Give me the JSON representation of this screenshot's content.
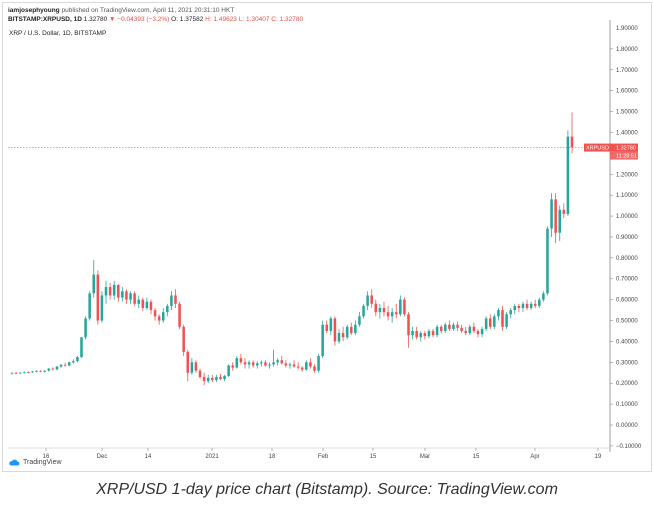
{
  "header": {
    "publisher": "iamjosephyoung",
    "published_text": "published on TradingView.com, April 11, 2021 20:31:10 HKT",
    "symbol": "BITSTAMP:XRPUSD, 1D",
    "last": "1.32780",
    "change": "▼ −0.04393 (−3.2%)",
    "open": "O: 1.37582",
    "high": "H: 1.49623",
    "low": "L: 1.30407",
    "close": "C: 1.32780"
  },
  "chart_title": "XRP / U.S. Dollar, 1D, BITSTAMP",
  "price_badge": {
    "label": "XRPUSD",
    "value": "1.32780",
    "countdown": "11:28:51"
  },
  "logo_text": "TradingView",
  "caption": "XRP/USD 1-day price chart (Bitstamp). Source: TradingView.com",
  "colors": {
    "up": "#26a69a",
    "down": "#ef5350",
    "badge": "#ef5350"
  },
  "chart_data": {
    "type": "candlestick",
    "x_ticks": [
      "16",
      "Dec",
      "14",
      "2021",
      "18",
      "Feb",
      "15",
      "Mar",
      "15",
      "Apr",
      "19"
    ],
    "y_ticks": [
      "1.80000",
      "1.70000",
      "1.60000",
      "1.50000",
      "1.40000",
      "1.30000",
      "1.20000",
      "1.10000",
      "1.00000",
      "0.90000",
      "0.80000",
      "0.70000",
      "0.60000",
      "0.50000",
      "0.40000",
      "0.30000",
      "0.20000",
      "0.10000",
      "0.00000",
      "−0.10000"
    ],
    "y_top_label": "1.90000",
    "ylim": [
      -0.11,
      1.9
    ],
    "last_price": 1.3278,
    "candles": [
      [
        0.246,
        0.252,
        0.242,
        0.25
      ],
      [
        0.25,
        0.254,
        0.245,
        0.248
      ],
      [
        0.248,
        0.252,
        0.243,
        0.251
      ],
      [
        0.251,
        0.256,
        0.247,
        0.253
      ],
      [
        0.253,
        0.257,
        0.249,
        0.252
      ],
      [
        0.252,
        0.258,
        0.249,
        0.256
      ],
      [
        0.256,
        0.262,
        0.252,
        0.259
      ],
      [
        0.259,
        0.262,
        0.253,
        0.255
      ],
      [
        0.255,
        0.262,
        0.251,
        0.26
      ],
      [
        0.26,
        0.272,
        0.256,
        0.27
      ],
      [
        0.27,
        0.276,
        0.262,
        0.266
      ],
      [
        0.266,
        0.282,
        0.262,
        0.28
      ],
      [
        0.28,
        0.292,
        0.274,
        0.288
      ],
      [
        0.288,
        0.298,
        0.28,
        0.285
      ],
      [
        0.285,
        0.303,
        0.281,
        0.3
      ],
      [
        0.3,
        0.315,
        0.294,
        0.306
      ],
      [
        0.306,
        0.33,
        0.3,
        0.325
      ],
      [
        0.325,
        0.42,
        0.32,
        0.42
      ],
      [
        0.42,
        0.52,
        0.41,
        0.51
      ],
      [
        0.51,
        0.64,
        0.5,
        0.63
      ],
      [
        0.63,
        0.79,
        0.61,
        0.72
      ],
      [
        0.72,
        0.74,
        0.48,
        0.5
      ],
      [
        0.5,
        0.64,
        0.49,
        0.62
      ],
      [
        0.62,
        0.69,
        0.58,
        0.66
      ],
      [
        0.66,
        0.68,
        0.6,
        0.62
      ],
      [
        0.62,
        0.69,
        0.6,
        0.67
      ],
      [
        0.67,
        0.675,
        0.59,
        0.61
      ],
      [
        0.61,
        0.66,
        0.59,
        0.64
      ],
      [
        0.64,
        0.65,
        0.58,
        0.6
      ],
      [
        0.6,
        0.64,
        0.58,
        0.63
      ],
      [
        0.63,
        0.64,
        0.57,
        0.58
      ],
      [
        0.58,
        0.62,
        0.56,
        0.6
      ],
      [
        0.6,
        0.61,
        0.545,
        0.56
      ],
      [
        0.56,
        0.61,
        0.55,
        0.59
      ],
      [
        0.59,
        0.6,
        0.53,
        0.55
      ],
      [
        0.55,
        0.56,
        0.5,
        0.52
      ],
      [
        0.52,
        0.53,
        0.48,
        0.5
      ],
      [
        0.5,
        0.56,
        0.49,
        0.54
      ],
      [
        0.54,
        0.58,
        0.52,
        0.57
      ],
      [
        0.57,
        0.64,
        0.55,
        0.62
      ],
      [
        0.62,
        0.65,
        0.56,
        0.58
      ],
      [
        0.58,
        0.59,
        0.46,
        0.47
      ],
      [
        0.47,
        0.48,
        0.33,
        0.35
      ],
      [
        0.35,
        0.36,
        0.21,
        0.25
      ],
      [
        0.25,
        0.32,
        0.24,
        0.3
      ],
      [
        0.3,
        0.31,
        0.25,
        0.26
      ],
      [
        0.26,
        0.27,
        0.22,
        0.23
      ],
      [
        0.23,
        0.25,
        0.19,
        0.21
      ],
      [
        0.21,
        0.24,
        0.2,
        0.225
      ],
      [
        0.225,
        0.24,
        0.205,
        0.215
      ],
      [
        0.215,
        0.24,
        0.205,
        0.23
      ],
      [
        0.23,
        0.245,
        0.215,
        0.22
      ],
      [
        0.22,
        0.24,
        0.21,
        0.235
      ],
      [
        0.235,
        0.29,
        0.23,
        0.285
      ],
      [
        0.285,
        0.3,
        0.26,
        0.275
      ],
      [
        0.275,
        0.33,
        0.27,
        0.32
      ],
      [
        0.32,
        0.34,
        0.29,
        0.3
      ],
      [
        0.3,
        0.32,
        0.27,
        0.29
      ],
      [
        0.29,
        0.31,
        0.27,
        0.3
      ],
      [
        0.3,
        0.31,
        0.275,
        0.285
      ],
      [
        0.285,
        0.305,
        0.27,
        0.295
      ],
      [
        0.295,
        0.31,
        0.28,
        0.3
      ],
      [
        0.3,
        0.31,
        0.28,
        0.285
      ],
      [
        0.285,
        0.3,
        0.27,
        0.29
      ],
      [
        0.29,
        0.36,
        0.28,
        0.3
      ],
      [
        0.3,
        0.32,
        0.285,
        0.31
      ],
      [
        0.31,
        0.33,
        0.29,
        0.295
      ],
      [
        0.295,
        0.31,
        0.275,
        0.285
      ],
      [
        0.285,
        0.3,
        0.27,
        0.29
      ],
      [
        0.29,
        0.31,
        0.275,
        0.28
      ],
      [
        0.28,
        0.3,
        0.265,
        0.275
      ],
      [
        0.275,
        0.28,
        0.255,
        0.265
      ],
      [
        0.265,
        0.31,
        0.26,
        0.3
      ],
      [
        0.3,
        0.32,
        0.27,
        0.28
      ],
      [
        0.28,
        0.29,
        0.25,
        0.26
      ],
      [
        0.26,
        0.34,
        0.25,
        0.33
      ],
      [
        0.33,
        0.5,
        0.32,
        0.48
      ],
      [
        0.48,
        0.5,
        0.44,
        0.45
      ],
      [
        0.45,
        0.52,
        0.43,
        0.51
      ],
      [
        0.51,
        0.52,
        0.38,
        0.4
      ],
      [
        0.4,
        0.46,
        0.39,
        0.44
      ],
      [
        0.44,
        0.47,
        0.4,
        0.42
      ],
      [
        0.42,
        0.48,
        0.41,
        0.47
      ],
      [
        0.47,
        0.49,
        0.43,
        0.44
      ],
      [
        0.44,
        0.5,
        0.43,
        0.48
      ],
      [
        0.48,
        0.54,
        0.47,
        0.52
      ],
      [
        0.52,
        0.58,
        0.51,
        0.57
      ],
      [
        0.57,
        0.64,
        0.55,
        0.62
      ],
      [
        0.62,
        0.65,
        0.56,
        0.58
      ],
      [
        0.58,
        0.6,
        0.52,
        0.54
      ],
      [
        0.54,
        0.58,
        0.51,
        0.56
      ],
      [
        0.56,
        0.59,
        0.52,
        0.54
      ],
      [
        0.54,
        0.57,
        0.5,
        0.52
      ],
      [
        0.52,
        0.56,
        0.49,
        0.54
      ],
      [
        0.54,
        0.58,
        0.51,
        0.53
      ],
      [
        0.53,
        0.62,
        0.52,
        0.6
      ],
      [
        0.6,
        0.61,
        0.52,
        0.53
      ],
      [
        0.53,
        0.54,
        0.37,
        0.43
      ],
      [
        0.43,
        0.47,
        0.41,
        0.45
      ],
      [
        0.45,
        0.47,
        0.41,
        0.42
      ],
      [
        0.42,
        0.45,
        0.4,
        0.44
      ],
      [
        0.44,
        0.45,
        0.41,
        0.425
      ],
      [
        0.425,
        0.46,
        0.415,
        0.45
      ],
      [
        0.45,
        0.46,
        0.42,
        0.43
      ],
      [
        0.43,
        0.48,
        0.42,
        0.47
      ],
      [
        0.47,
        0.48,
        0.44,
        0.45
      ],
      [
        0.45,
        0.49,
        0.44,
        0.48
      ],
      [
        0.48,
        0.5,
        0.45,
        0.46
      ],
      [
        0.46,
        0.49,
        0.45,
        0.48
      ],
      [
        0.48,
        0.495,
        0.45,
        0.465
      ],
      [
        0.465,
        0.48,
        0.44,
        0.45
      ],
      [
        0.45,
        0.47,
        0.43,
        0.44
      ],
      [
        0.44,
        0.48,
        0.43,
        0.47
      ],
      [
        0.47,
        0.49,
        0.44,
        0.45
      ],
      [
        0.45,
        0.46,
        0.42,
        0.435
      ],
      [
        0.435,
        0.47,
        0.42,
        0.46
      ],
      [
        0.46,
        0.52,
        0.45,
        0.51
      ],
      [
        0.51,
        0.53,
        0.46,
        0.47
      ],
      [
        0.47,
        0.53,
        0.46,
        0.52
      ],
      [
        0.52,
        0.56,
        0.5,
        0.55
      ],
      [
        0.55,
        0.57,
        0.45,
        0.47
      ],
      [
        0.47,
        0.54,
        0.46,
        0.53
      ],
      [
        0.53,
        0.56,
        0.51,
        0.55
      ],
      [
        0.55,
        0.58,
        0.53,
        0.57
      ],
      [
        0.57,
        0.58,
        0.54,
        0.56
      ],
      [
        0.56,
        0.59,
        0.54,
        0.58
      ],
      [
        0.58,
        0.6,
        0.55,
        0.56
      ],
      [
        0.56,
        0.59,
        0.55,
        0.58
      ],
      [
        0.58,
        0.6,
        0.56,
        0.57
      ],
      [
        0.57,
        0.61,
        0.56,
        0.6
      ],
      [
        0.6,
        0.64,
        0.59,
        0.63
      ],
      [
        0.63,
        0.95,
        0.62,
        0.94
      ],
      [
        0.94,
        1.11,
        0.9,
        1.08
      ],
      [
        1.08,
        1.11,
        0.87,
        0.92
      ],
      [
        0.92,
        1.05,
        0.88,
        1.03
      ],
      [
        1.03,
        1.06,
        0.99,
        1.01
      ],
      [
        1.01,
        1.41,
        1.0,
        1.38
      ],
      [
        1.38,
        1.496,
        1.3,
        1.33
      ]
    ]
  }
}
